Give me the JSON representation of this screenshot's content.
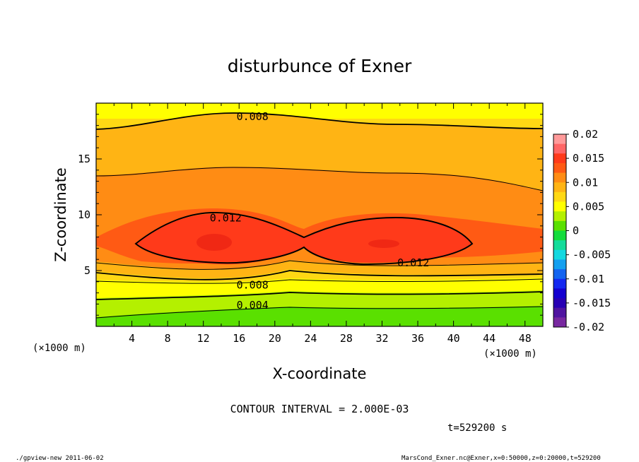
{
  "chart_data": {
    "type": "contour",
    "title": "disturbunce of Exner",
    "xlabel": "X-coordinate",
    "ylabel": "Z-coordinate",
    "x_unit": "(×1000 m)",
    "y_unit": "(×1000 m)",
    "xlim": [
      0,
      50
    ],
    "ylim": [
      0,
      20
    ],
    "x_ticks": [
      4,
      8,
      12,
      16,
      20,
      24,
      28,
      32,
      36,
      40,
      44,
      48
    ],
    "y_ticks": [
      5,
      10,
      15
    ],
    "contour_labels": [
      {
        "text": "0.008",
        "x": 17.5,
        "z": 18.8
      },
      {
        "text": "0.012",
        "x": 14.5,
        "z": 9.7
      },
      {
        "text": "0.012",
        "x": 35.5,
        "z": 5.7
      },
      {
        "text": "0.008",
        "x": 17.5,
        "z": 3.7
      },
      {
        "text": "0.004",
        "x": 17.5,
        "z": 1.9
      }
    ],
    "colorbar": {
      "ticks": [
        "0.02",
        "0.015",
        "0.01",
        "0.005",
        "0",
        "-0.005",
        "-0.01",
        "-0.015",
        "-0.02"
      ],
      "levels": [
        {
          "value": 0.018,
          "color": "#ff9a9a"
        },
        {
          "value": 0.016,
          "color": "#ff6666"
        },
        {
          "value": 0.014,
          "color": "#ff3a1a"
        },
        {
          "value": 0.012,
          "color": "#ff5a14"
        },
        {
          "value": 0.01,
          "color": "#ff8c14"
        },
        {
          "value": 0.008,
          "color": "#ffb414"
        },
        {
          "value": 0.006,
          "color": "#ffd814"
        },
        {
          "value": 0.004,
          "color": "#ffff00"
        },
        {
          "value": 0.002,
          "color": "#b4f000"
        },
        {
          "value": 0.0,
          "color": "#5ae000"
        },
        {
          "value": -0.002,
          "color": "#14dc3c"
        },
        {
          "value": -0.004,
          "color": "#14dc9a"
        },
        {
          "value": -0.006,
          "color": "#14d8e0"
        },
        {
          "value": -0.008,
          "color": "#14a0f0"
        },
        {
          "value": -0.01,
          "color": "#1464f0"
        },
        {
          "value": -0.012,
          "color": "#1428f0"
        },
        {
          "value": -0.014,
          "color": "#1400d0"
        },
        {
          "value": -0.016,
          "color": "#2800b4"
        },
        {
          "value": -0.018,
          "color": "#5014a0"
        },
        {
          "value": -0.02,
          "color": "#7828a0"
        }
      ]
    }
  },
  "footer": {
    "contour_interval": "CONTOUR INTERVAL = 2.000E-03",
    "time": "t=529200 s",
    "program": "./gpview-new   2011-06-02",
    "source": "MarsCond_Exner.nc@Exner,x=0:50000,z=0:20000,t=529200"
  }
}
